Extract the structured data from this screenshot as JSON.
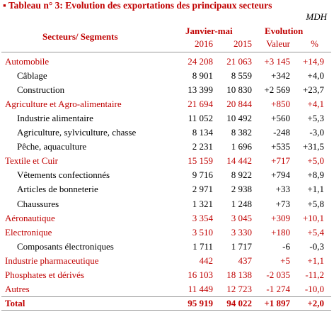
{
  "header": {
    "title": "▪ Tableau n° 3: Evolution des exportations des principaux secteurs",
    "unit": "MDH"
  },
  "table": {
    "columns": {
      "sector": "Secteurs/ Segments",
      "period": "Janvier-mai",
      "evolution": "Evolution",
      "sub": [
        "2016",
        "2015",
        "Valeur",
        "%"
      ]
    },
    "sectors": [
      {
        "label": "Automobile",
        "values": [
          "24 208",
          "21 063",
          "+3 145",
          "+14,9"
        ],
        "segments": [
          {
            "label": "Câblage",
            "values": [
              "8 901",
              "8 559",
              "+342",
              "+4,0"
            ]
          },
          {
            "label": "Construction",
            "values": [
              "13 399",
              "10 830",
              "+2 569",
              "+23,7"
            ]
          }
        ]
      },
      {
        "label": "Agriculture et Agro-alimentaire",
        "values": [
          "21 694",
          "20 844",
          "+850",
          "+4,1"
        ],
        "segments": [
          {
            "label": "Industrie alimentaire",
            "values": [
              "11 052",
              "10 492",
              "+560",
              "+5,3"
            ]
          },
          {
            "label": "Agriculture, sylviculture, chasse",
            "values": [
              "8 134",
              "8 382",
              "-248",
              "-3,0"
            ]
          },
          {
            "label": "Pêche, aquaculture",
            "values": [
              "2 231",
              "1 696",
              "+535",
              "+31,5"
            ]
          }
        ]
      },
      {
        "label": "Textile et Cuir",
        "values": [
          "15 159",
          "14 442",
          "+717",
          "+5,0"
        ],
        "segments": [
          {
            "label": "Vêtements confectionnés",
            "values": [
              "9 716",
              "8 922",
              "+794",
              "+8,9"
            ]
          },
          {
            "label": "Articles de bonneterie",
            "values": [
              "2 971",
              "2 938",
              "+33",
              "+1,1"
            ]
          },
          {
            "label": "Chaussures",
            "values": [
              "1 321",
              "1 248",
              "+73",
              "+5,8"
            ]
          }
        ]
      },
      {
        "label": "Aéronautique",
        "values": [
          "3 354",
          "3 045",
          "+309",
          "+10,1"
        ],
        "segments": []
      },
      {
        "label": "Electronique",
        "values": [
          "3 510",
          "3 330",
          "+180",
          "+5,4"
        ],
        "segments": [
          {
            "label": "Composants électroniques",
            "values": [
              "1 711",
              "1 717",
              "-6",
              "-0,3"
            ]
          }
        ]
      },
      {
        "label": "Industrie pharmaceutique",
        "values": [
          "442",
          "437",
          "+5",
          "+1,1"
        ],
        "segments": []
      },
      {
        "label": "Phosphates et dérivés",
        "values": [
          "16 103",
          "18 138",
          "-2 035",
          "-11,2"
        ],
        "segments": []
      },
      {
        "label": "Autres",
        "values": [
          "11 449",
          "12 723",
          "-1 274",
          "-10,0"
        ],
        "segments": []
      }
    ],
    "total": {
      "label": "Total",
      "values": [
        "95 919",
        "94 022",
        "+1 897",
        "+2,0"
      ]
    }
  }
}
